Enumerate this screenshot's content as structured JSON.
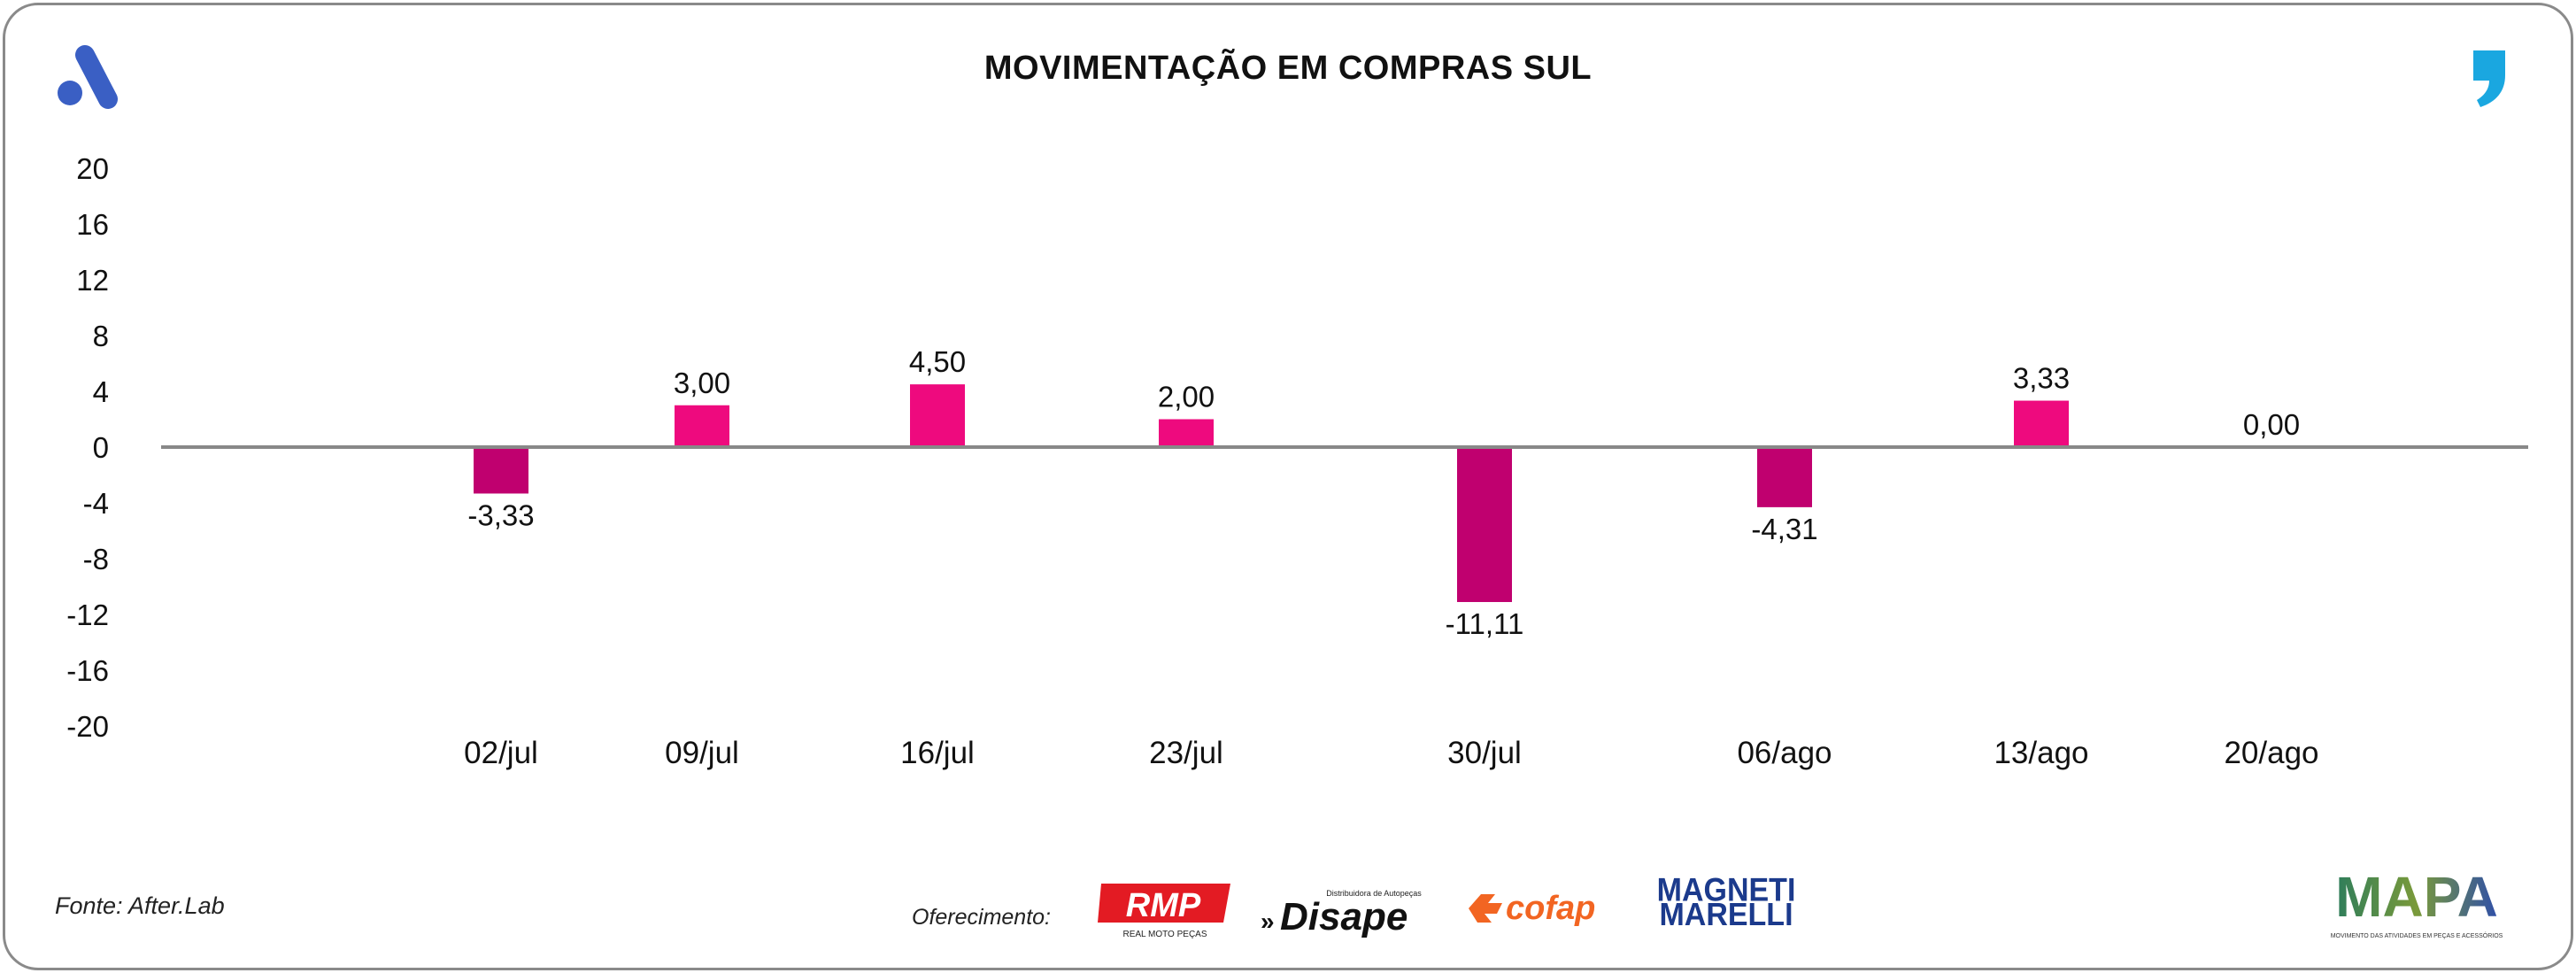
{
  "title": "MOVIMENTAÇÃO EM COMPRAS SUL",
  "source": "Fonte: After.Lab",
  "sponsor_label": "Oferecimento:",
  "sponsors": {
    "rmp": {
      "name": "RMP",
      "tagline": "REAL MOTO PEÇAS"
    },
    "disape": {
      "name": "Disape",
      "tagline": "Distribuidora de Autopeças"
    },
    "cofap": {
      "name": "cofap"
    },
    "magneti": {
      "line1": "MAGNETI",
      "line2": "MARELLI"
    },
    "mapa": {
      "name": "MAPA",
      "tagline": "MOVIMENTO DAS ATIVIDADES EM PEÇAS E ACESSÓRIOS"
    }
  },
  "colors": {
    "positive": "#ee0a7e",
    "negative": "#c0006f",
    "axis": "#888888",
    "brand_blue": "#3a5fc4",
    "brand_cyan": "#1aa7e0"
  },
  "chart_data": {
    "type": "bar",
    "title": "MOVIMENTAÇÃO EM COMPRAS SUL",
    "categories": [
      "02/jul",
      "09/jul",
      "16/jul",
      "23/jul",
      "30/jul",
      "06/ago",
      "13/ago",
      "20/ago"
    ],
    "values": [
      -3.33,
      3.0,
      4.5,
      2.0,
      -11.11,
      -4.31,
      3.33,
      0.0
    ],
    "labels": [
      "-3,33",
      "3,00",
      "4,50",
      "2,00",
      "-11,11",
      "-4,31",
      "3,33",
      "0,00"
    ],
    "ylim": [
      -20,
      20
    ],
    "yticks": [
      20,
      16,
      12,
      8,
      4,
      0,
      -4,
      -8,
      -12,
      -16,
      -20
    ],
    "xlabel": "",
    "ylabel": "",
    "grid": false,
    "legend": "none"
  }
}
